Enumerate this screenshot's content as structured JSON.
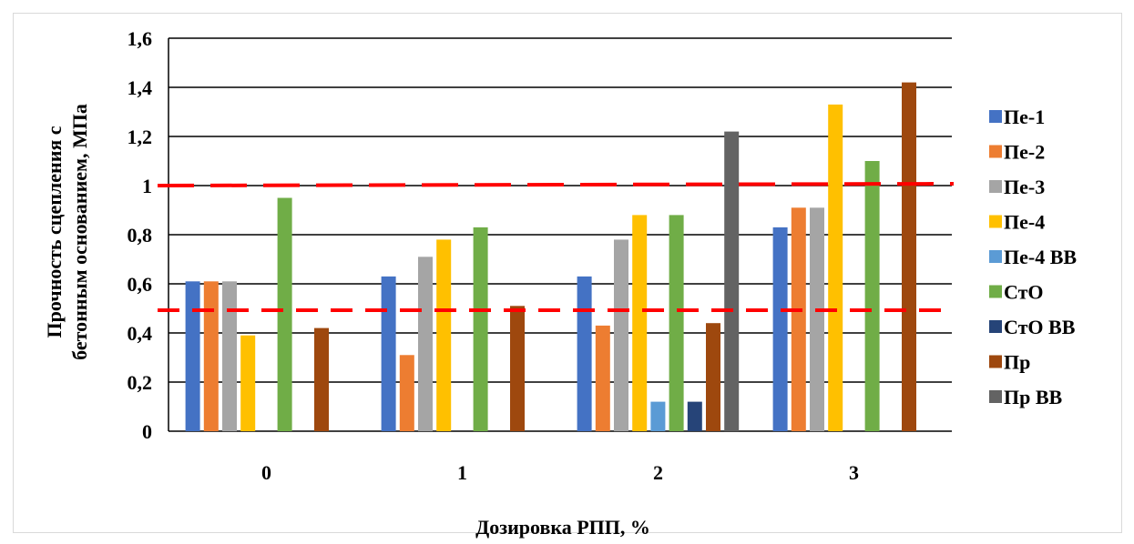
{
  "chart_data": {
    "type": "bar",
    "title": "",
    "xlabel": "Дозировка РПП, %",
    "ylabel_lines": [
      "Прочность сцепления с",
      "бетонным основанием, МПа"
    ],
    "categories": [
      "0",
      "1",
      "2",
      "3"
    ],
    "ylim": [
      0,
      1.6
    ],
    "yticks": [
      "0",
      "0,2",
      "0,4",
      "0,6",
      "0,8",
      "1",
      "1,2",
      "1,4",
      "1,6"
    ],
    "grid": true,
    "legend_position": "right",
    "series": [
      {
        "name": "Пе-1",
        "color": "#4472C4",
        "values": [
          0.61,
          0.63,
          0.63,
          0.83
        ]
      },
      {
        "name": "Пе-2",
        "color": "#ED7D31",
        "values": [
          0.61,
          0.31,
          0.43,
          0.91
        ]
      },
      {
        "name": "Пе-3",
        "color": "#A5A5A5",
        "values": [
          0.61,
          0.71,
          0.78,
          0.91
        ]
      },
      {
        "name": "Пе-4",
        "color": "#FFC000",
        "values": [
          0.39,
          0.78,
          0.88,
          1.33
        ]
      },
      {
        "name": "Пе-4 ВВ",
        "color": "#5B9BD5",
        "values": [
          null,
          null,
          0.12,
          null
        ]
      },
      {
        "name": "СтО",
        "color": "#70AD47",
        "values": [
          0.95,
          0.83,
          0.88,
          1.1
        ]
      },
      {
        "name": "СтО ВВ",
        "color": "#264478",
        "values": [
          null,
          null,
          0.12,
          null
        ]
      },
      {
        "name": "Пр",
        "color": "#9E480E",
        "values": [
          0.42,
          0.51,
          0.44,
          1.42
        ]
      },
      {
        "name": "Пр ВВ",
        "color": "#636363",
        "values": [
          null,
          null,
          1.22,
          null
        ]
      }
    ],
    "reference_lines": [
      {
        "value": 1.0,
        "color": "#FF0000",
        "style": "dashed"
      },
      {
        "value": 0.49,
        "color": "#FF0000",
        "style": "dashed"
      }
    ]
  }
}
